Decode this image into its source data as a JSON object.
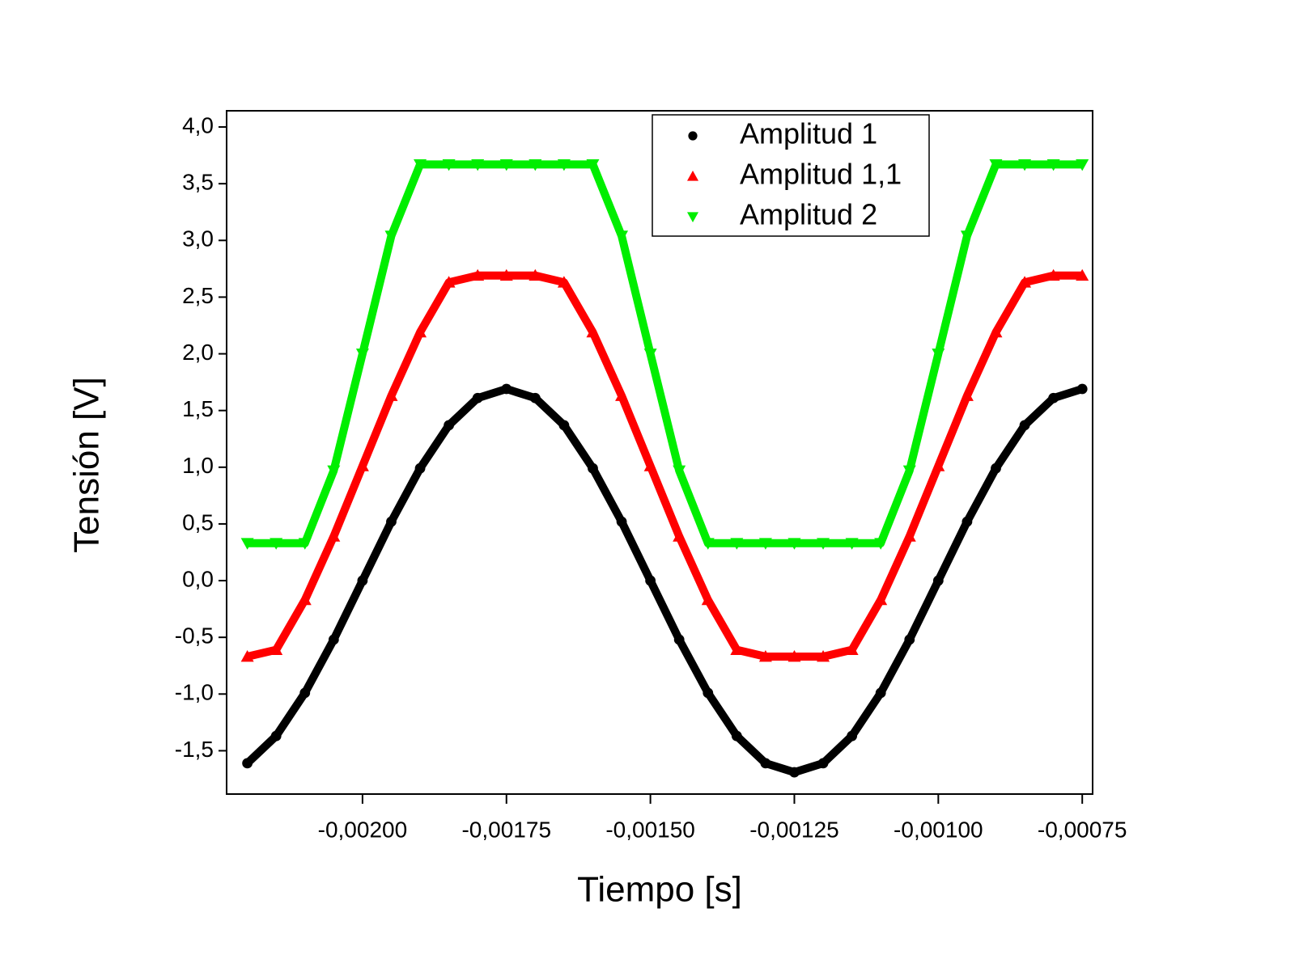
{
  "chart_data": {
    "type": "scatter",
    "xlabel": "Tiempo [s]",
    "ylabel": "Tensión [V]",
    "x": [
      -0.0022,
      -0.00215,
      -0.0021,
      -0.00205,
      -0.002,
      -0.00195,
      -0.0019,
      -0.00185,
      -0.0018,
      -0.00175,
      -0.0017,
      -0.00165,
      -0.0016,
      -0.00155,
      -0.0015,
      -0.00145,
      -0.0014,
      -0.00135,
      -0.0013,
      -0.00125,
      -0.0012,
      -0.00115,
      -0.0011,
      -0.00105,
      -0.001,
      -0.00095,
      -0.0009,
      -0.00085,
      -0.0008,
      -0.00075
    ],
    "series": [
      {
        "name": "Amplitud 1",
        "color": "#000000",
        "marker": "circle",
        "values": [
          -1.61,
          -1.37,
          -0.99,
          -0.52,
          0,
          0.52,
          0.99,
          1.37,
          1.61,
          1.69,
          1.61,
          1.37,
          0.99,
          0.52,
          0,
          -0.52,
          -0.99,
          -1.37,
          -1.61,
          -1.69,
          -1.61,
          -1.37,
          -0.99,
          -0.52,
          0,
          0.52,
          0.99,
          1.37,
          1.61,
          1.69
        ]
      },
      {
        "name": "Amplitud 1,1",
        "color": "#ff0000",
        "marker": "triangle-up",
        "values": [
          -0.67,
          -0.61,
          -0.17,
          0.39,
          1.01,
          1.63,
          2.19,
          2.63,
          2.69,
          2.69,
          2.69,
          2.63,
          2.19,
          1.63,
          1.01,
          0.39,
          -0.17,
          -0.61,
          -0.67,
          -0.67,
          -0.67,
          -0.61,
          -0.17,
          0.39,
          1.01,
          1.63,
          2.19,
          2.63,
          2.69,
          2.69
        ]
      },
      {
        "name": "Amplitud 2",
        "color": "#00ee00",
        "marker": "triangle-down",
        "values": [
          0.33,
          0.33,
          0.33,
          0.97,
          2.0,
          3.04,
          3.67,
          3.67,
          3.67,
          3.67,
          3.67,
          3.67,
          3.67,
          3.04,
          2.0,
          0.97,
          0.33,
          0.33,
          0.33,
          0.33,
          0.33,
          0.33,
          0.33,
          0.97,
          2.0,
          3.04,
          3.67,
          3.67,
          3.67,
          3.67
        ]
      }
    ],
    "xlim": [
      -0.002236,
      -0.000732
    ],
    "xticks": [
      {
        "value": -0.002,
        "label": "-0,00200"
      },
      {
        "value": -0.00175,
        "label": "-0,00175"
      },
      {
        "value": -0.0015,
        "label": "-0,00150"
      },
      {
        "value": -0.00125,
        "label": "-0,00125"
      },
      {
        "value": -0.001,
        "label": "-0,00100"
      },
      {
        "value": -0.00075,
        "label": "-0,00075"
      }
    ],
    "ylim": [
      -1.882,
      4.143
    ],
    "yticks": [
      {
        "value": -1.5,
        "label": "-1,5"
      },
      {
        "value": -1,
        "label": "-1,0"
      },
      {
        "value": -0.5,
        "label": "-0,5"
      },
      {
        "value": 0,
        "label": "0,0"
      },
      {
        "value": 0.5,
        "label": "0,5"
      },
      {
        "value": 1,
        "label": "1,0"
      },
      {
        "value": 1.5,
        "label": "1,5"
      },
      {
        "value": 2,
        "label": "2,0"
      },
      {
        "value": 2.5,
        "label": "2,5"
      },
      {
        "value": 3,
        "label": "3,0"
      },
      {
        "value": 3.5,
        "label": "3,5"
      },
      {
        "value": 4,
        "label": "4,0"
      }
    ],
    "grid": false,
    "legend": "upper right"
  }
}
